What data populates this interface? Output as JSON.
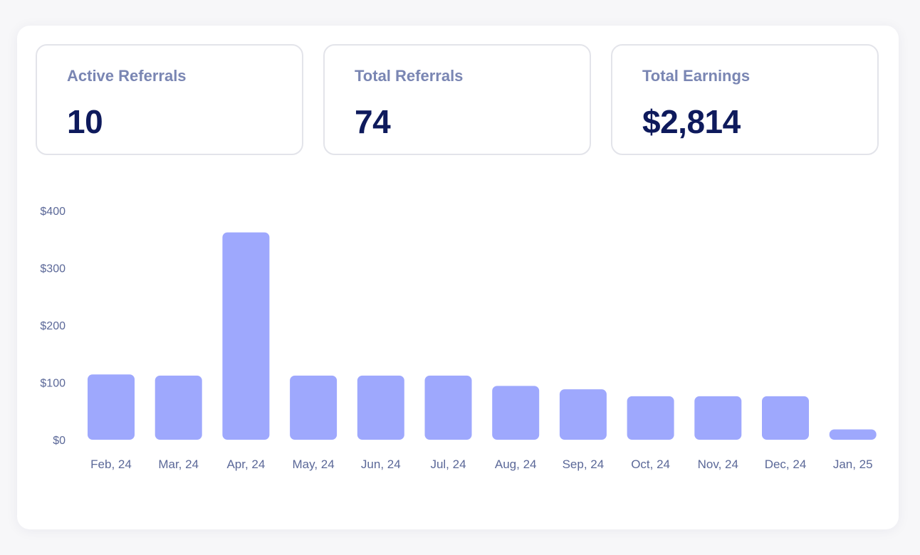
{
  "stats": [
    {
      "label": "Active Referrals",
      "value": "10"
    },
    {
      "label": "Total Referrals",
      "value": "74"
    },
    {
      "label": "Total Earnings",
      "value": "$2,814"
    }
  ],
  "colors": {
    "bar": "#9ea8fd",
    "value_text": "#0e1a5c",
    "label_text": "#7a86b3",
    "axis_text": "#5b6898",
    "card_border": "#e3e4ea"
  },
  "chart_data": {
    "type": "bar",
    "categories": [
      "Feb, 24",
      "Mar, 24",
      "Apr, 24",
      "May, 24",
      "Jun, 24",
      "Jul, 24",
      "Aug, 24",
      "Sep, 24",
      "Oct, 24",
      "Nov, 24",
      "Dec, 24",
      "Jan, 25"
    ],
    "values": [
      114,
      112,
      362,
      112,
      112,
      112,
      94,
      88,
      76,
      76,
      76,
      18
    ],
    "yticks": [
      0,
      100,
      200,
      300,
      400
    ],
    "ytick_labels": [
      "$0",
      "$100",
      "$200",
      "$300",
      "$400"
    ],
    "ylim": [
      0,
      400
    ],
    "grid": false,
    "legend": "none"
  }
}
